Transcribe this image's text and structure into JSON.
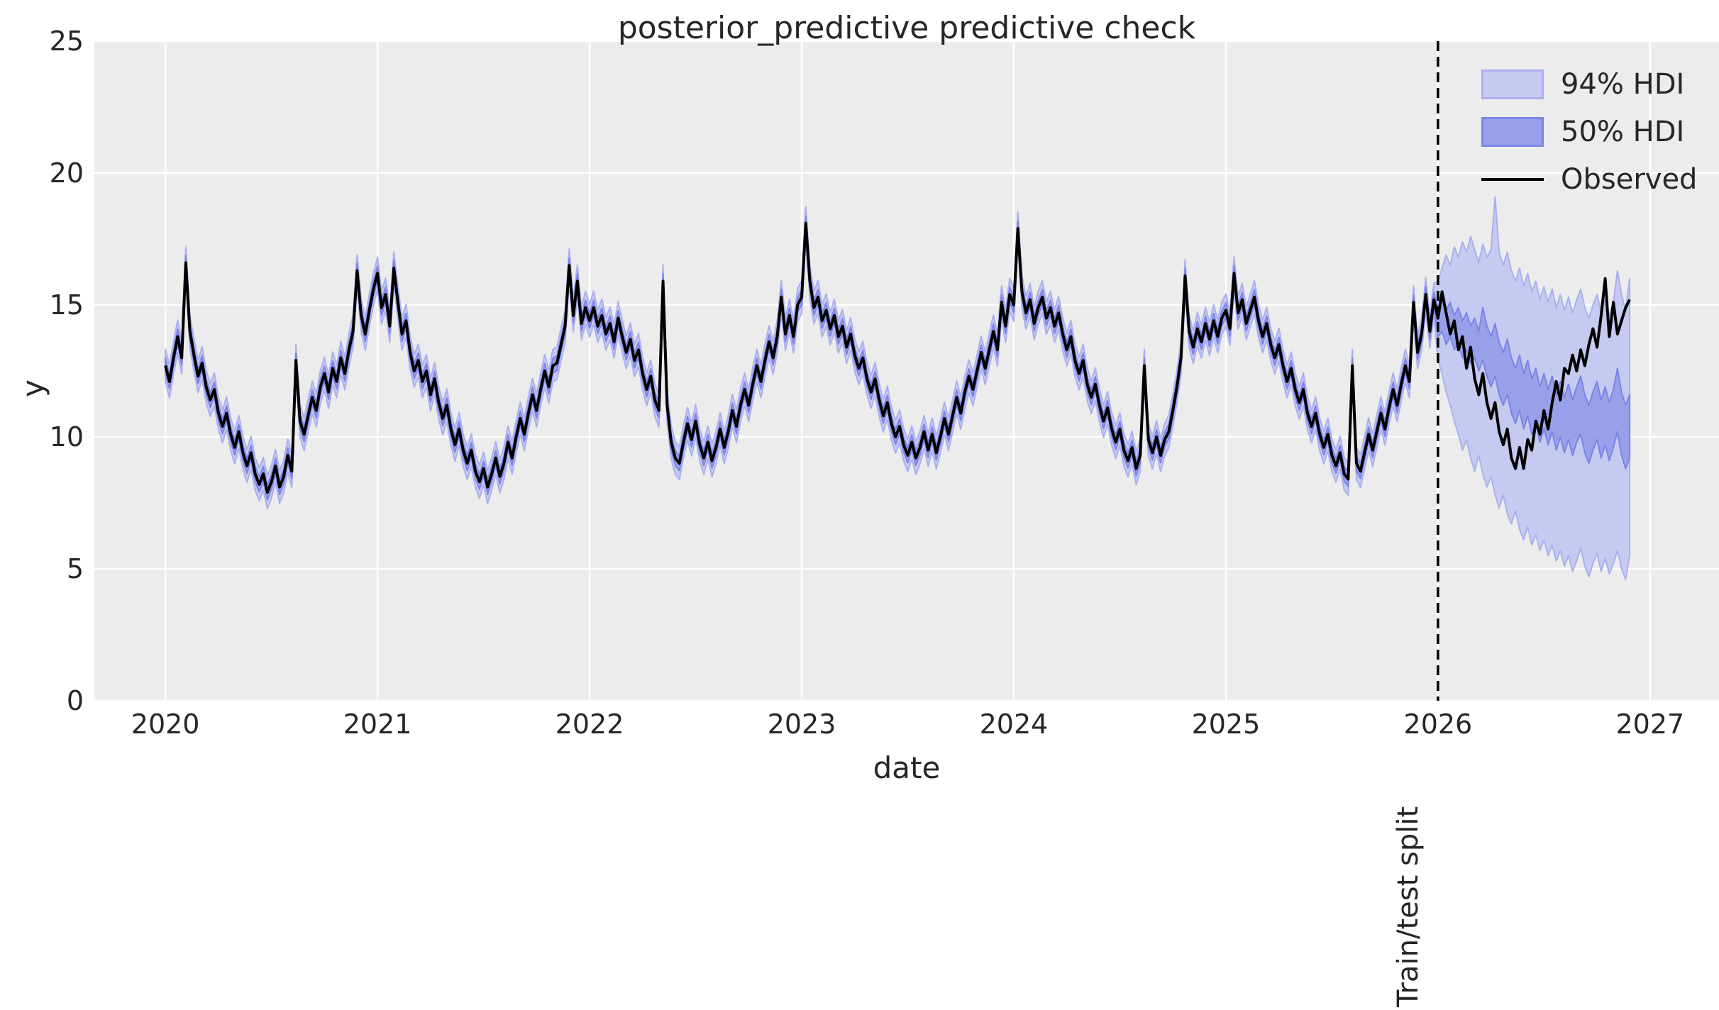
{
  "chart_data": {
    "type": "line",
    "title": "posterior_predictive predictive check",
    "xlabel": "date",
    "ylabel": "y",
    "xlim": [
      2019.665,
      2027.325
    ],
    "ylim": [
      0,
      25
    ],
    "xticks": [
      2020,
      2021,
      2022,
      2023,
      2024,
      2025,
      2026,
      2027
    ],
    "yticks": [
      0,
      5,
      10,
      15,
      20,
      25
    ],
    "grid": true,
    "background_color": "#ececec",
    "gridline_color": "#ffffff",
    "legend": {
      "position": "upper right",
      "entries": [
        {
          "label": "94% HDI",
          "type": "patch",
          "fill": "#c7caf0",
          "edge": "#aab0ee"
        },
        {
          "label": "50% HDI",
          "type": "patch",
          "fill": "#99a0ea",
          "edge": "#7b84e6"
        },
        {
          "label": "Observed",
          "type": "line",
          "color": "#000000"
        }
      ]
    },
    "split_line": {
      "x": 2026,
      "label": "Train/test split",
      "style": "dashed",
      "color": "#000000"
    },
    "colors": {
      "hdi94_fill": "#c7caf0",
      "hdi94_edge": "#aab0ee",
      "hdi50_fill": "#99a0ea",
      "hdi50_edge": "#7b84e6",
      "observed": "#000000",
      "text": "#262626"
    },
    "series": {
      "x_start": 2020.0,
      "x_step_years": 0.0192308,
      "n": 360,
      "observed": [
        12.7,
        12.1,
        13.0,
        13.8,
        13.0,
        16.6,
        14.0,
        13.1,
        12.3,
        12.8,
        11.9,
        11.4,
        11.8,
        10.9,
        10.4,
        10.9,
        10.1,
        9.6,
        10.2,
        9.4,
        8.9,
        9.4,
        8.6,
        8.2,
        8.6,
        7.9,
        8.3,
        8.9,
        8.1,
        8.5,
        9.3,
        8.7,
        12.9,
        10.6,
        10.1,
        10.8,
        11.5,
        11.0,
        11.9,
        12.4,
        11.7,
        12.6,
        12.1,
        13.0,
        12.4,
        13.3,
        14.0,
        16.3,
        14.6,
        13.9,
        14.8,
        15.6,
        16.2,
        14.9,
        15.4,
        14.2,
        16.4,
        15.1,
        13.9,
        14.4,
        13.2,
        12.5,
        12.9,
        12.1,
        12.5,
        11.6,
        12.2,
        11.3,
        10.7,
        11.2,
        10.3,
        9.7,
        10.3,
        9.5,
        9.0,
        9.5,
        8.7,
        8.3,
        8.8,
        8.1,
        8.6,
        9.2,
        8.5,
        9.0,
        9.8,
        9.2,
        10.0,
        10.7,
        10.1,
        10.9,
        11.6,
        11.0,
        11.8,
        12.5,
        11.9,
        12.7,
        12.8,
        13.5,
        14.2,
        16.5,
        14.6,
        15.9,
        14.3,
        14.9,
        14.4,
        14.9,
        14.2,
        14.6,
        13.9,
        14.3,
        13.6,
        14.5,
        13.8,
        13.2,
        13.7,
        12.9,
        13.3,
        12.4,
        11.8,
        12.3,
        11.4,
        11.0,
        15.9,
        11.2,
        9.8,
        9.2,
        9.0,
        9.8,
        10.5,
        9.9,
        10.6,
        9.7,
        9.2,
        9.8,
        9.1,
        9.6,
        10.3,
        9.6,
        10.2,
        11.0,
        10.4,
        11.2,
        11.8,
        11.2,
        12.0,
        12.7,
        12.1,
        12.9,
        13.6,
        13.0,
        13.8,
        15.3,
        13.9,
        14.6,
        13.8,
        15.0,
        15.3,
        18.1,
        15.9,
        14.9,
        15.3,
        14.4,
        14.8,
        14.1,
        14.6,
        13.8,
        14.2,
        13.4,
        13.9,
        13.1,
        12.6,
        13.0,
        12.2,
        11.7,
        12.2,
        11.4,
        10.8,
        11.3,
        10.5,
        10.0,
        10.4,
        9.7,
        9.3,
        9.8,
        9.2,
        9.6,
        10.2,
        9.5,
        10.1,
        9.4,
        10.0,
        10.7,
        10.1,
        10.8,
        11.5,
        10.9,
        11.7,
        12.3,
        11.8,
        12.5,
        13.2,
        12.6,
        13.3,
        14.0,
        13.3,
        15.1,
        14.2,
        15.4,
        15.0,
        17.9,
        15.5,
        14.7,
        15.2,
        14.3,
        14.9,
        15.3,
        14.5,
        14.9,
        14.2,
        14.7,
        13.9,
        13.3,
        13.8,
        12.9,
        12.4,
        12.9,
        12.0,
        11.5,
        12.0,
        11.2,
        10.6,
        11.1,
        10.3,
        9.8,
        10.3,
        9.5,
        9.1,
        9.6,
        8.8,
        9.3,
        12.7,
        9.9,
        9.4,
        10.0,
        9.3,
        9.9,
        10.2,
        11.0,
        11.9,
        13.0,
        16.1,
        14.0,
        13.4,
        14.1,
        13.6,
        14.3,
        13.7,
        14.4,
        13.8,
        14.5,
        14.8,
        14.1,
        16.2,
        14.7,
        15.2,
        14.3,
        14.8,
        15.3,
        14.4,
        13.8,
        14.3,
        13.5,
        13.0,
        13.5,
        12.7,
        12.1,
        12.6,
        11.8,
        11.3,
        11.8,
        10.9,
        10.4,
        10.9,
        10.1,
        9.6,
        10.1,
        9.3,
        8.9,
        9.4,
        8.6,
        8.4,
        12.7,
        9.0,
        8.7,
        9.4,
        10.1,
        9.5,
        10.2,
        10.9,
        10.3,
        11.1,
        11.8,
        11.2,
        12.0,
        12.7,
        12.1,
        15.1,
        13.2,
        13.9,
        15.4,
        14.0,
        15.2,
        14.5,
        15.5,
        14.7,
        13.9,
        14.4,
        13.3,
        13.8,
        12.6,
        13.4,
        12.2,
        11.6,
        12.4,
        11.3,
        10.7,
        11.3,
        10.2,
        9.7,
        10.3,
        9.2,
        8.8,
        9.6,
        8.8,
        9.9,
        9.5,
        10.6,
        10.1,
        11.0,
        10.3,
        11.3,
        12.1,
        11.4,
        12.6,
        12.4,
        13.1,
        12.5,
        13.3,
        12.7,
        13.5,
        14.1,
        13.4,
        14.6,
        16.0,
        13.8,
        15.1,
        13.9,
        14.4,
        14.9,
        15.2
      ],
      "train_hdi94_halfwidth": 0.62,
      "train_hdi50_halfwidth": 0.28,
      "forecast_start_index": 312,
      "hdi94_hi": [
        15.9,
        16.4,
        16.9,
        16.5,
        17.2,
        16.8,
        17.4,
        17.0,
        17.6,
        17.1,
        16.6,
        17.3,
        16.8,
        17.1,
        19.1,
        17.0,
        16.5,
        17.0,
        16.3,
        15.9,
        16.4,
        15.7,
        16.2,
        15.5,
        15.9,
        15.2,
        15.7,
        15.1,
        15.6,
        14.9,
        15.4,
        14.8,
        15.3,
        14.7,
        15.2,
        15.6,
        14.9,
        14.5,
        15.0,
        15.4,
        14.7,
        15.2,
        14.6,
        15.1,
        16.3,
        15.4,
        14.8,
        16.0
      ],
      "hdi94_lo": [
        12.9,
        12.4,
        11.7,
        11.2,
        10.6,
        10.1,
        9.5,
        9.9,
        9.2,
        8.7,
        9.3,
        8.6,
        8.1,
        8.5,
        7.8,
        7.3,
        7.8,
        7.1,
        6.7,
        7.2,
        6.5,
        6.1,
        6.6,
        5.9,
        6.3,
        5.7,
        6.1,
        5.5,
        5.9,
        5.3,
        5.7,
        5.1,
        5.5,
        4.9,
        5.3,
        5.8,
        5.1,
        4.7,
        5.2,
        5.6,
        4.9,
        5.4,
        4.8,
        5.2,
        5.7,
        5.0,
        4.6,
        5.5
      ],
      "hdi50_hi": [
        14.9,
        15.2,
        14.8,
        15.1,
        14.6,
        14.9,
        14.4,
        14.7,
        14.2,
        14.5,
        14.0,
        14.9,
        14.2,
        13.8,
        14.3,
        13.6,
        13.2,
        13.7,
        13.0,
        12.6,
        13.1,
        12.4,
        12.9,
        12.2,
        12.6,
        11.9,
        12.4,
        11.8,
        12.3,
        11.6,
        12.1,
        11.5,
        12.0,
        11.4,
        11.9,
        12.3,
        11.6,
        11.2,
        11.7,
        12.1,
        11.4,
        11.9,
        11.3,
        11.8,
        12.6,
        11.7,
        11.2,
        11.6
      ],
      "hdi50_lo": [
        13.8,
        14.0,
        13.5,
        13.8,
        13.3,
        13.5,
        13.0,
        13.3,
        12.8,
        13.0,
        12.5,
        12.9,
        12.3,
        11.9,
        12.3,
        11.6,
        11.2,
        11.6,
        10.9,
        10.5,
        11.0,
        10.3,
        10.8,
        10.1,
        10.5,
        9.8,
        10.3,
        9.7,
        10.2,
        9.5,
        10.0,
        9.4,
        9.9,
        9.3,
        9.8,
        10.1,
        9.4,
        9.0,
        9.5,
        9.9,
        9.2,
        9.7,
        9.1,
        9.6,
        10.2,
        9.3,
        8.8,
        9.2
      ]
    }
  }
}
